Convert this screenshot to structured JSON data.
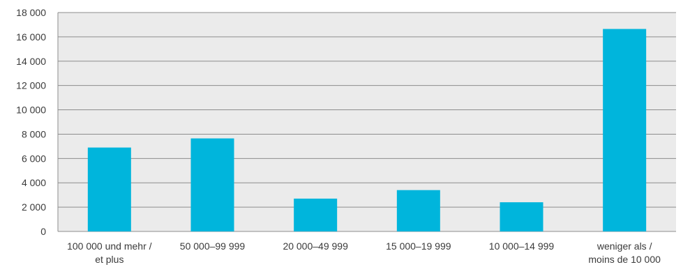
{
  "chart_data": {
    "type": "bar",
    "title": "",
    "xlabel": "",
    "ylabel": "",
    "categories": [
      [
        "100 000 und mehr /",
        "et plus"
      ],
      [
        "50 000–99 999"
      ],
      [
        "20 000–49 999"
      ],
      [
        "15 000–19 999"
      ],
      [
        "10 000–14 999"
      ],
      [
        "weniger als /",
        "moins de 10 000"
      ]
    ],
    "values": [
      6900,
      7650,
      2700,
      3400,
      2400,
      16650
    ],
    "ylim": [
      0,
      18000
    ],
    "yticks": [
      0,
      2000,
      4000,
      6000,
      8000,
      10000,
      12000,
      14000,
      16000,
      18000
    ],
    "ytick_labels": [
      "0",
      "2 000",
      "4 000",
      "6 000",
      "8 000",
      "10 000",
      "12 000",
      "14 000",
      "16 000",
      "18 000"
    ],
    "grid": true,
    "legend": "none",
    "colors": {
      "bar": "#00b5dc",
      "plot_background": "#ebebeb",
      "gridline": "#8c8c8c"
    }
  }
}
